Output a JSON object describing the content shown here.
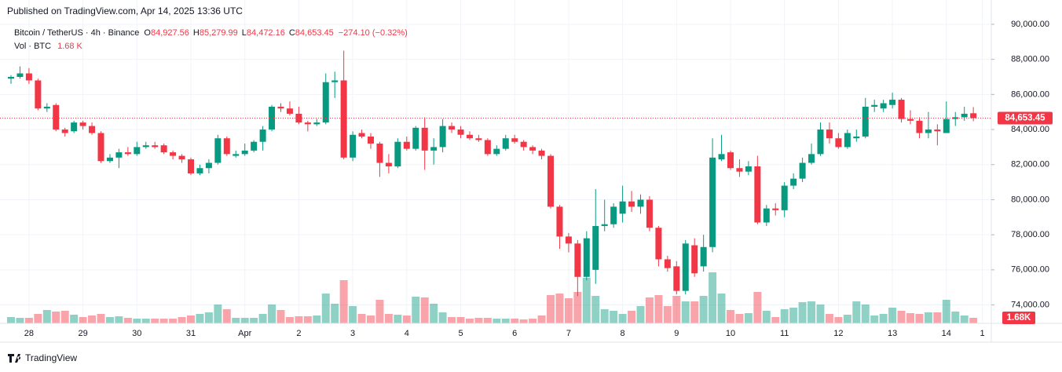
{
  "header": "Published on TradingView.com, Apr 14, 2025 13:36 UTC",
  "footer": "TradingView",
  "legend": {
    "symbol": "Bitcoin / TetherUS · 4h · Binance",
    "fields": [
      {
        "key": "O",
        "value": "84,927.56"
      },
      {
        "key": "H",
        "value": "85,279.99"
      },
      {
        "key": "L",
        "value": "84,472.16"
      },
      {
        "key": "C",
        "value": "84,653.45"
      }
    ],
    "change": "−274.10 (−0.32%)",
    "vol_name": "Vol · BTC",
    "vol_value": "1.68 K"
  },
  "chart_data": {
    "type": "candlestick",
    "up_color": "#089981",
    "down_color": "#f23645",
    "grid": true,
    "categories": [
      null,
      null,
      "28",
      null,
      null,
      null,
      null,
      null,
      "29",
      null,
      null,
      null,
      null,
      null,
      "30",
      null,
      null,
      null,
      null,
      null,
      "31",
      null,
      null,
      null,
      null,
      null,
      "Apr",
      null,
      null,
      null,
      null,
      null,
      "2",
      null,
      null,
      null,
      null,
      null,
      "3",
      null,
      null,
      null,
      null,
      null,
      "4",
      null,
      null,
      null,
      null,
      null,
      "5",
      null,
      null,
      null,
      null,
      null,
      "6",
      null,
      null,
      null,
      null,
      null,
      "7",
      null,
      null,
      null,
      null,
      null,
      "8",
      null,
      null,
      null,
      null,
      null,
      "9",
      null,
      null,
      null,
      null,
      null,
      "10",
      null,
      null,
      null,
      null,
      null,
      "11",
      null,
      null,
      null,
      null,
      null,
      "12",
      null,
      null,
      null,
      null,
      null,
      "13",
      null,
      null,
      null,
      null,
      null,
      "14",
      null,
      null,
      null,
      "1"
    ],
    "open": [
      86900,
      87000,
      87200,
      86800,
      85200,
      85400,
      84000,
      83900,
      84400,
      84200,
      83800,
      82200,
      82400,
      82700,
      82600,
      83000,
      83100,
      83100,
      82700,
      82500,
      82300,
      81500,
      81800,
      82100,
      83500,
      82500,
      82600,
      82800,
      83300,
      84000,
      85300,
      85200,
      84900,
      84400,
      84300,
      84400,
      86700,
      86800,
      82400,
      83800,
      83600,
      83200,
      82100,
      81900,
      83300,
      82900,
      84100,
      82800,
      83000,
      84200,
      84000,
      83700,
      83500,
      83400,
      82600,
      82900,
      83500,
      83300,
      83000,
      82800,
      82500,
      79600,
      77900,
      77500,
      75600,
      76000,
      78500,
      78600,
      79200,
      79900,
      79600,
      80000,
      78400,
      76600,
      76200,
      74800,
      77400,
      76200,
      77300,
      82300,
      82700,
      81800,
      81600,
      81900,
      78700,
      79500,
      79400,
      80800,
      81200,
      82100,
      82600,
      84000,
      83500,
      83000,
      83500,
      83600,
      85300,
      85200,
      85400,
      85700,
      84600,
      84500,
      83800,
      84000,
      83800,
      84600,
      84700,
      84927.56,
      null
    ],
    "high": [
      87100,
      87600,
      87500,
      86900,
      85500,
      85500,
      84100,
      84500,
      84500,
      84400,
      83900,
      82600,
      82900,
      83000,
      83300,
      83300,
      83300,
      83200,
      82800,
      82600,
      82400,
      82000,
      82300,
      83700,
      83600,
      82800,
      83200,
      83400,
      84200,
      85400,
      85500,
      85600,
      85300,
      84500,
      84600,
      87200,
      87300,
      88500,
      83900,
      84000,
      83800,
      83300,
      82600,
      83500,
      83600,
      84200,
      84700,
      83500,
      84600,
      84400,
      84200,
      83900,
      83700,
      83500,
      83100,
      83700,
      83700,
      83400,
      83100,
      82900,
      82600,
      79700,
      78100,
      77700,
      78200,
      80600,
      80000,
      79800,
      80800,
      80500,
      80300,
      80200,
      78500,
      76800,
      76500,
      77700,
      77800,
      78000,
      83500,
      83700,
      82800,
      82300,
      82200,
      82500,
      79700,
      79800,
      81000,
      81500,
      82400,
      83200,
      84400,
      84400,
      83800,
      84000,
      84000,
      85800,
      85700,
      85700,
      86100,
      85800,
      85100,
      84700,
      85000,
      84300,
      85600,
      85000,
      85300,
      85279.99,
      null
    ],
    "low": [
      86600,
      86900,
      86600,
      85100,
      85000,
      83900,
      83600,
      83800,
      84000,
      83700,
      82100,
      82100,
      81800,
      82500,
      82500,
      82900,
      82900,
      82600,
      82300,
      82100,
      81400,
      81400,
      81500,
      82000,
      82500,
      82400,
      82500,
      82700,
      82800,
      83900,
      85000,
      84800,
      84300,
      83900,
      84200,
      84300,
      85800,
      82300,
      82200,
      83500,
      82900,
      81300,
      81500,
      81800,
      82800,
      82800,
      81700,
      82000,
      82700,
      83800,
      83500,
      83400,
      83300,
      82500,
      82500,
      82800,
      83200,
      82800,
      82600,
      82300,
      79500,
      77200,
      77000,
      74500,
      75400,
      75200,
      78200,
      78400,
      78700,
      79300,
      79200,
      78200,
      76200,
      75900,
      74600,
      74600,
      75600,
      75900,
      77000,
      82200,
      81700,
      81300,
      81400,
      78600,
      78500,
      79100,
      79000,
      80600,
      81000,
      82000,
      82500,
      83200,
      82900,
      82900,
      83300,
      83500,
      85000,
      85000,
      85200,
      84400,
      84300,
      83500,
      83500,
      83100,
      83800,
      84200,
      84500,
      84472.16,
      null
    ],
    "close": [
      87000,
      87200,
      86800,
      85200,
      85300,
      84000,
      83800,
      84400,
      84200,
      83800,
      82200,
      82400,
      82700,
      82600,
      83000,
      83100,
      83000,
      82700,
      82500,
      82300,
      81500,
      81800,
      82100,
      83500,
      82600,
      82600,
      82800,
      83300,
      84000,
      85300,
      85200,
      84900,
      84400,
      84300,
      84400,
      86700,
      86800,
      82400,
      83700,
      83600,
      83200,
      82100,
      81900,
      83300,
      82900,
      84100,
      82800,
      83000,
      84200,
      84000,
      83700,
      83500,
      83400,
      82600,
      82900,
      83500,
      83300,
      83000,
      82800,
      82500,
      79600,
      77900,
      77500,
      75600,
      77800,
      78500,
      78600,
      79600,
      79900,
      79600,
      80000,
      78400,
      76600,
      76100,
      74800,
      77500,
      75800,
      77300,
      82400,
      82600,
      81800,
      81600,
      81900,
      78700,
      79500,
      79400,
      80800,
      81200,
      82100,
      82600,
      84000,
      83500,
      83000,
      83800,
      83600,
      85300,
      85400,
      85500,
      85700,
      84600,
      84500,
      83800,
      84000,
      83900,
      84600,
      84700,
      84900,
      84653.45,
      null
    ],
    "volume": [
      1920,
      1680,
      1680,
      2880,
      4080,
      3600,
      3840,
      2640,
      1920,
      2400,
      2880,
      1920,
      2160,
      1680,
      1440,
      1440,
      1440,
      1440,
      1440,
      1920,
      2400,
      2880,
      3360,
      5760,
      4320,
      1680,
      1680,
      1680,
      2880,
      5760,
      4080,
      1920,
      2160,
      2160,
      2400,
      9120,
      6000,
      13200,
      5280,
      2880,
      2400,
      7200,
      2880,
      2640,
      2400,
      8160,
      7920,
      6000,
      3360,
      1920,
      1920,
      1440,
      1680,
      1680,
      1440,
      1440,
      1440,
      1200,
      1440,
      2400,
      8640,
      9120,
      7680,
      9600,
      13920,
      8400,
      4320,
      3840,
      2880,
      3840,
      5280,
      7920,
      8640,
      5280,
      8400,
      6720,
      6720,
      8400,
      15600,
      9120,
      4080,
      2880,
      3120,
      9600,
      3840,
      1920,
      4320,
      4800,
      6480,
      6720,
      5760,
      2880,
      1920,
      2640,
      6720,
      5760,
      2400,
      2880,
      4800,
      3840,
      3120,
      2880,
      3360,
      3360,
      7200,
      3600,
      2400,
      1680,
      null
    ],
    "ylim": [
      72950,
      90490
    ],
    "yticks": [
      {
        "value": 74000,
        "label": "74,000.00"
      },
      {
        "value": 76000,
        "label": "76,000.00"
      },
      {
        "value": 78000,
        "label": "78,000.00"
      },
      {
        "value": 80000,
        "label": "80,000.00"
      },
      {
        "value": 82000,
        "label": "82,000.00"
      },
      {
        "value": 84000,
        "label": "84,000.00"
      },
      {
        "value": 86000,
        "label": "86,000.00"
      },
      {
        "value": 88000,
        "label": "88,000.00"
      },
      {
        "value": 90000,
        "label": "90,000.00"
      }
    ],
    "last_price": {
      "value": 84653.45,
      "label": "84,653.45"
    },
    "last_volume_label": "1.68K"
  }
}
